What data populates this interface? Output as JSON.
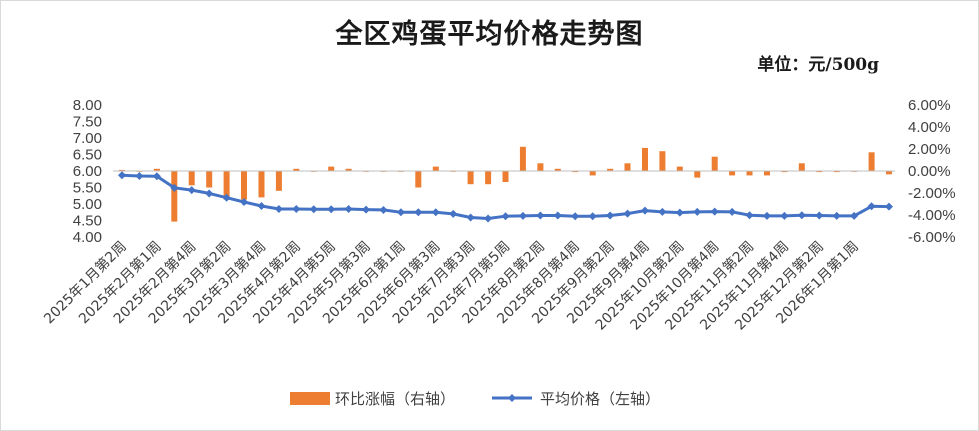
{
  "chart_data": {
    "type": "bar+line",
    "title": "全区鸡蛋平均价格走势图",
    "unit": "单位：元/500g",
    "y_left": {
      "ticks": [
        "8.00",
        "7.50",
        "7.00",
        "6.50",
        "6.00",
        "5.50",
        "5.00",
        "4.50",
        "4.00"
      ],
      "range": [
        4.0,
        8.0
      ]
    },
    "y_right": {
      "ticks": [
        "6.00%",
        "4.00%",
        "2.00%",
        "0.00%",
        "-2.00%",
        "-4.00%",
        "-6.00%"
      ],
      "range": [
        -6.0,
        6.0
      ]
    },
    "x_tick_labels": [
      "2025年1月第2周",
      "2025年2月第1周",
      "2025年2月第4周",
      "2025年3月第2周",
      "2025年3月第4周",
      "2025年4月第2周",
      "2025年4月第5周",
      "2025年5月第3周",
      "2025年6月第1周",
      "2025年6月第3周",
      "2025年7月第3周",
      "2025年7月第5周",
      "2025年8月第2周",
      "2025年8月第4周",
      "2025年9月第2周",
      "2025年9月第4周",
      "2025年10月第2周",
      "2025年10月第4周",
      "2025年11月第2周",
      "2025年11月第4周",
      "2025年12月第2周",
      "2026年1月第1周"
    ],
    "series": [
      {
        "name": "环比涨幅（右轴）",
        "kind": "bar",
        "axis": "right",
        "color": "#ed7d31",
        "values": [
          0.1,
          0.0,
          0.2,
          -4.6,
          -1.3,
          -1.5,
          -2.6,
          -2.6,
          -2.4,
          -1.8,
          0.2,
          0.0,
          0.4,
          0.2,
          0.0,
          0.0,
          0.0,
          -1.5,
          0.4,
          0.0,
          -1.2,
          -1.2,
          -1.0,
          2.2,
          0.7,
          0.2,
          -0.1,
          -0.4,
          0.2,
          0.7,
          2.1,
          1.8,
          0.4,
          -0.6,
          1.3,
          -0.4,
          -0.4,
          -0.4,
          -0.1,
          0.7,
          -0.1,
          -0.1,
          0.0,
          1.7,
          -0.3
        ]
      },
      {
        "name": "平均价格（左轴）",
        "kind": "line",
        "axis": "left",
        "color": "#4472c4",
        "values": [
          5.87,
          5.85,
          5.84,
          5.49,
          5.42,
          5.32,
          5.19,
          5.06,
          4.94,
          4.85,
          4.85,
          4.84,
          4.84,
          4.85,
          4.83,
          4.82,
          4.75,
          4.75,
          4.75,
          4.7,
          4.59,
          4.56,
          4.63,
          4.64,
          4.65,
          4.65,
          4.63,
          4.63,
          4.65,
          4.71,
          4.8,
          4.76,
          4.74,
          4.76,
          4.77,
          4.76,
          4.66,
          4.64,
          4.64,
          4.66,
          4.65,
          4.64,
          4.64,
          4.93,
          4.92
        ]
      }
    ],
    "legend": {
      "position": "bottom"
    }
  }
}
